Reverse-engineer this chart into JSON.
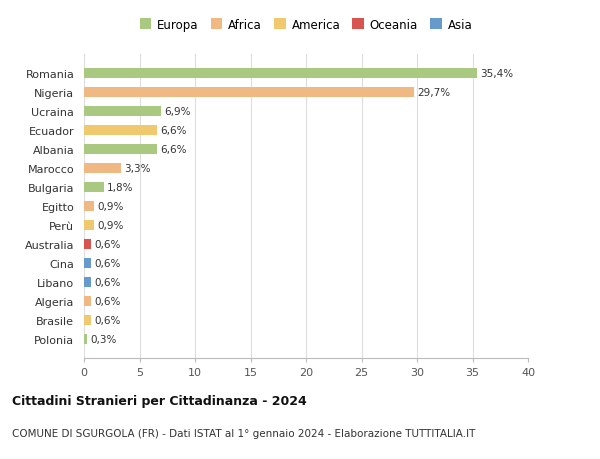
{
  "categories": [
    "Romania",
    "Nigeria",
    "Ucraina",
    "Ecuador",
    "Albania",
    "Marocco",
    "Bulgaria",
    "Egitto",
    "Perù",
    "Australia",
    "Cina",
    "Libano",
    "Algeria",
    "Brasile",
    "Polonia"
  ],
  "values": [
    35.4,
    29.7,
    6.9,
    6.6,
    6.6,
    3.3,
    1.8,
    0.9,
    0.9,
    0.6,
    0.6,
    0.6,
    0.6,
    0.6,
    0.3
  ],
  "labels": [
    "35,4%",
    "29,7%",
    "6,9%",
    "6,6%",
    "6,6%",
    "3,3%",
    "1,8%",
    "0,9%",
    "0,9%",
    "0,6%",
    "0,6%",
    "0,6%",
    "0,6%",
    "0,6%",
    "0,3%"
  ],
  "colors": [
    "#a8c97f",
    "#f0b882",
    "#a8c97f",
    "#f0c96e",
    "#a8c97f",
    "#f0b882",
    "#a8c97f",
    "#f0b882",
    "#f0c96e",
    "#d9534f",
    "#6699cc",
    "#6699cc",
    "#f0b882",
    "#f0c96e",
    "#a8c97f"
  ],
  "legend_labels": [
    "Europa",
    "Africa",
    "America",
    "Oceania",
    "Asia"
  ],
  "legend_colors": [
    "#a8c97f",
    "#f0b882",
    "#f0c96e",
    "#d9534f",
    "#6699cc"
  ],
  "title": "Cittadini Stranieri per Cittadinanza - 2024",
  "subtitle": "COMUNE DI SGURGOLA (FR) - Dati ISTAT al 1° gennaio 2024 - Elaborazione TUTTITALIA.IT",
  "xlim": [
    0,
    40
  ],
  "xticks": [
    0,
    5,
    10,
    15,
    20,
    25,
    30,
    35,
    40
  ],
  "background_color": "#ffffff",
  "grid_color": "#dddddd",
  "bar_height": 0.55
}
